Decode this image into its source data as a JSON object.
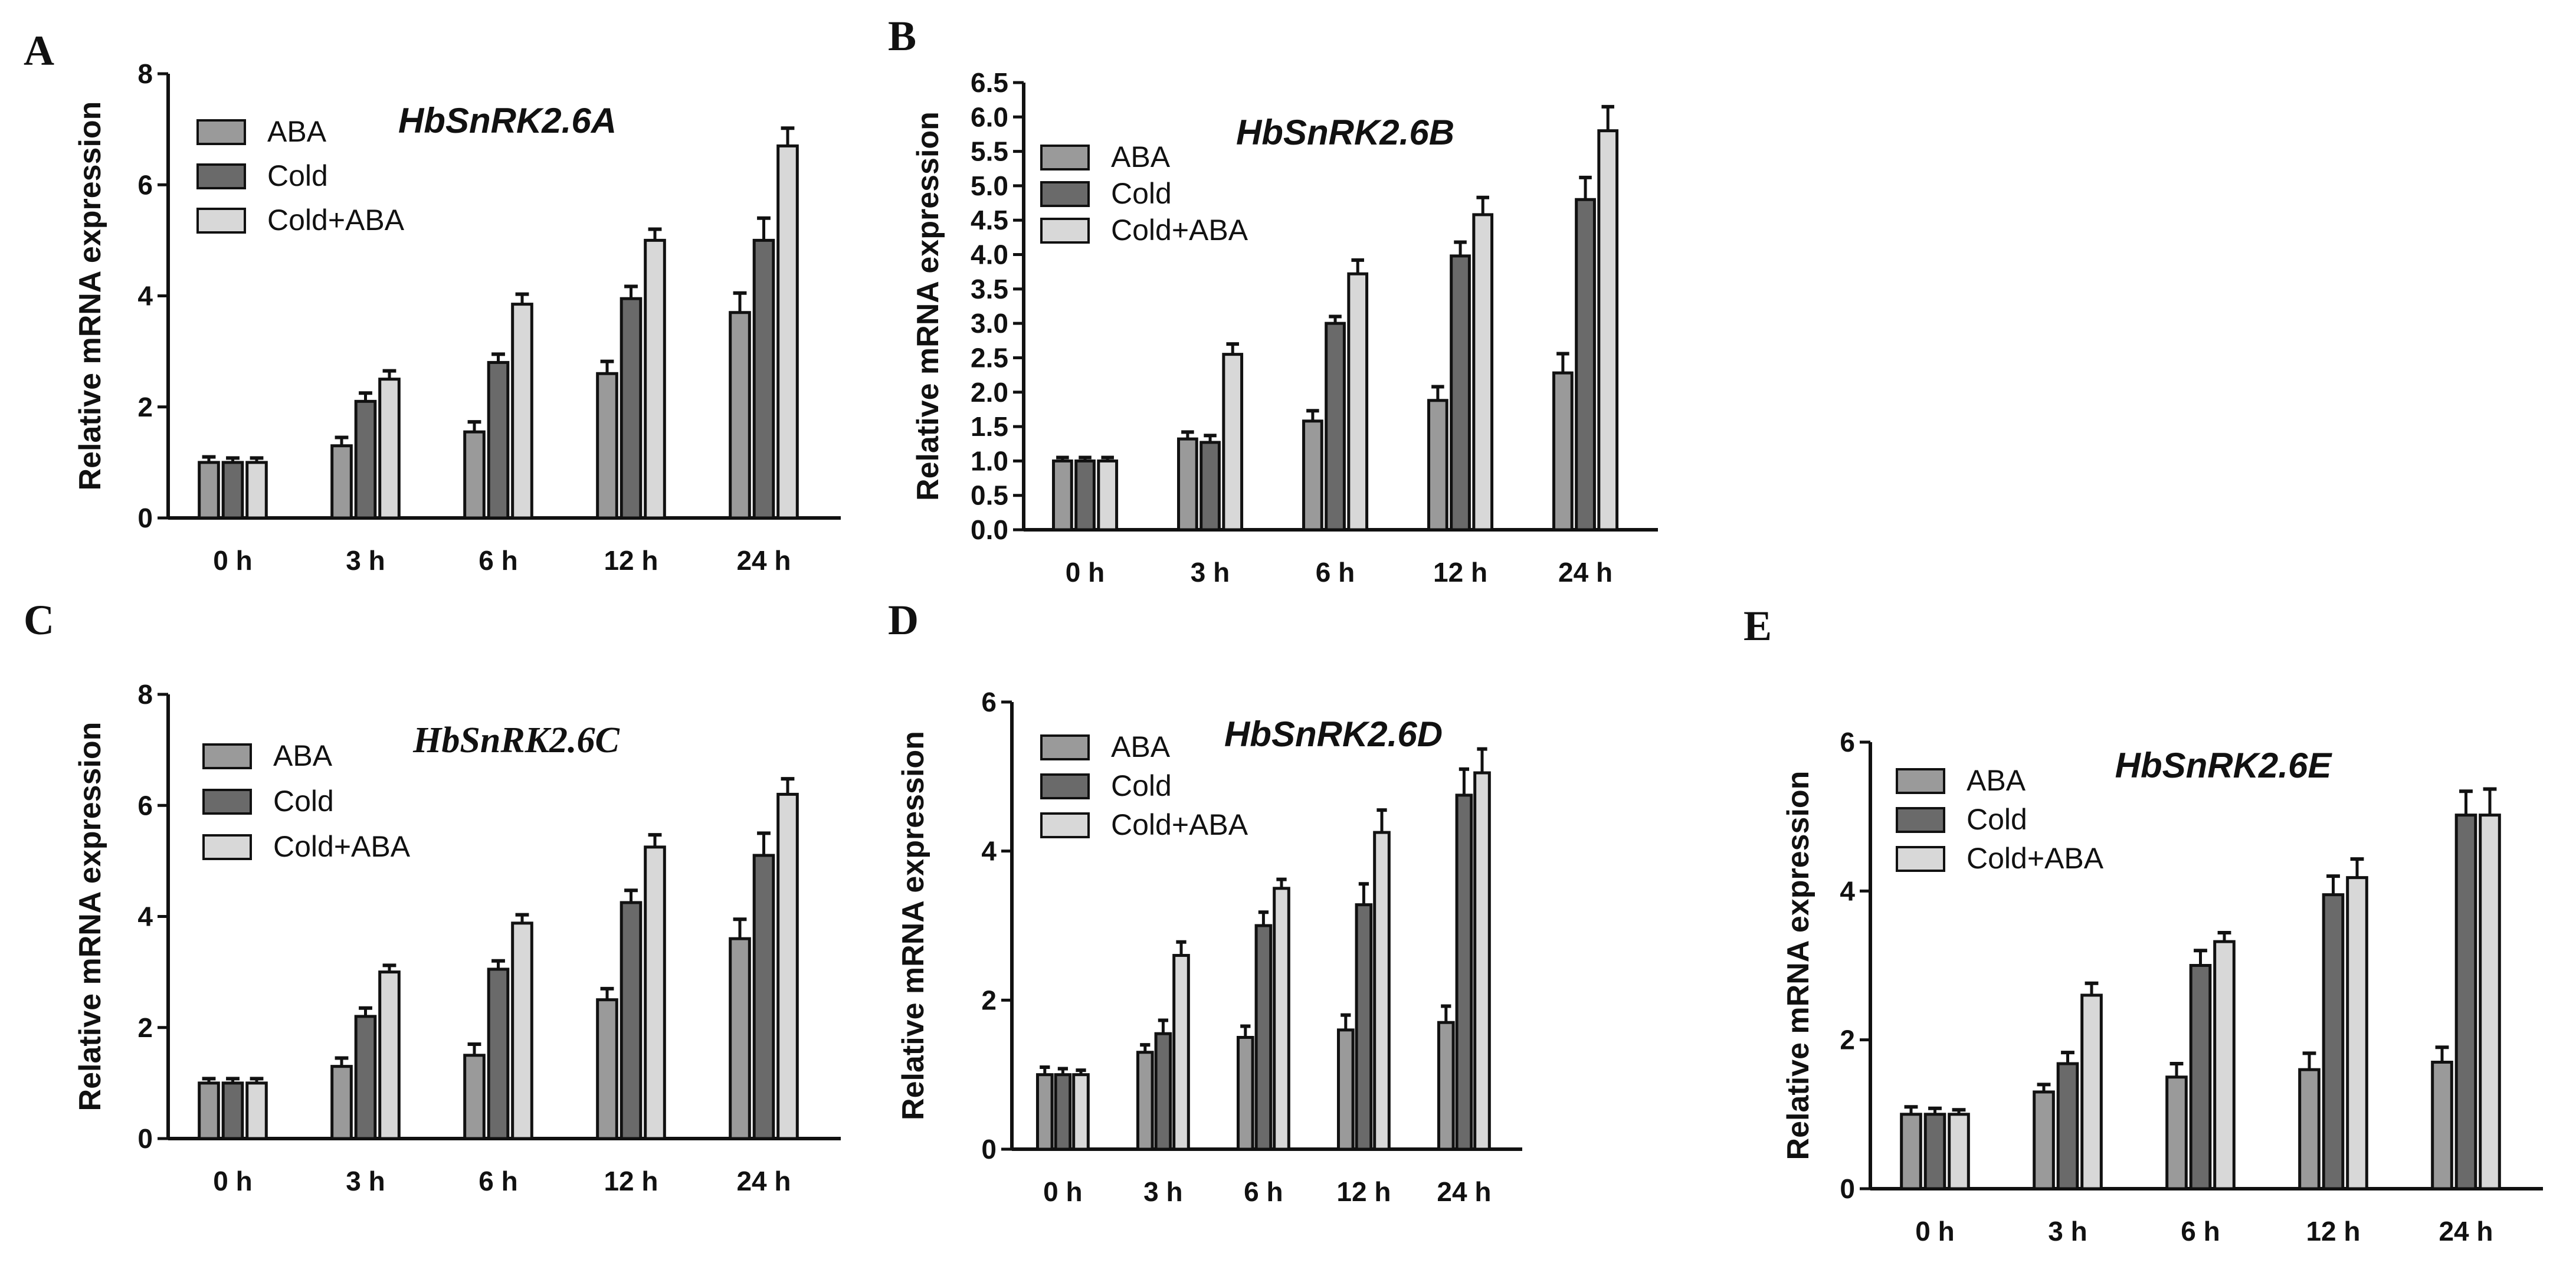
{
  "colors": {
    "ABA": "#9a9a9a",
    "Cold": "#6a6a6a",
    "Cold+ABA": "#d8d8d8"
  },
  "chart_data": [
    {
      "panel": "A",
      "type": "bar",
      "title": "HbSnRK2.6A",
      "ylabel": "Relative mRNA expression",
      "categories": [
        "0 h",
        "3 h",
        "6 h",
        "12 h",
        "24 h"
      ],
      "yticks": [
        "0",
        "2",
        "4",
        "6",
        "8"
      ],
      "ylim": [
        0,
        8
      ],
      "grid": false,
      "legend_position": "top-left",
      "series": [
        {
          "name": "ABA",
          "values": [
            1.0,
            1.3,
            1.55,
            2.6,
            3.7
          ],
          "errors": [
            0.1,
            0.15,
            0.18,
            0.22,
            0.35
          ]
        },
        {
          "name": "Cold",
          "values": [
            1.0,
            2.1,
            2.8,
            3.95,
            5.0
          ],
          "errors": [
            0.08,
            0.15,
            0.15,
            0.22,
            0.4
          ]
        },
        {
          "name": "Cold+ABA",
          "values": [
            1.0,
            2.5,
            3.85,
            5.0,
            6.7
          ],
          "errors": [
            0.08,
            0.15,
            0.18,
            0.2,
            0.32
          ]
        }
      ]
    },
    {
      "panel": "B",
      "type": "bar",
      "title": "HbSnRK2.6B",
      "ylabel": "Relative mRNA expression",
      "categories": [
        "0 h",
        "3 h",
        "6 h",
        "12 h",
        "24 h"
      ],
      "yticks": [
        "0.0",
        "0.5",
        "1.0",
        "1.5",
        "2.0",
        "2.5",
        "3.0",
        "3.5",
        "4.0",
        "4.5",
        "5.0",
        "5.5",
        "6.0",
        "6.5"
      ],
      "ylim": [
        0,
        6.5
      ],
      "grid": false,
      "legend_position": "top-left",
      "series": [
        {
          "name": "ABA",
          "values": [
            1.0,
            1.32,
            1.58,
            1.88,
            2.28
          ],
          "errors": [
            0.05,
            0.1,
            0.15,
            0.2,
            0.28
          ]
        },
        {
          "name": "Cold",
          "values": [
            1.0,
            1.27,
            3.0,
            3.98,
            4.8
          ],
          "errors": [
            0.05,
            0.1,
            0.1,
            0.2,
            0.32
          ]
        },
        {
          "name": "Cold+ABA",
          "values": [
            1.0,
            2.55,
            3.72,
            4.58,
            5.8
          ],
          "errors": [
            0.05,
            0.15,
            0.2,
            0.25,
            0.35
          ]
        }
      ]
    },
    {
      "panel": "C",
      "type": "bar",
      "title": "HbSnRK2.6C",
      "ylabel": "Relative mRNA expression",
      "categories": [
        "0 h",
        "3 h",
        "6 h",
        "12 h",
        "24 h"
      ],
      "yticks": [
        "0",
        "2",
        "4",
        "6",
        "8"
      ],
      "ylim": [
        0,
        8
      ],
      "grid": false,
      "legend_position": "top-left",
      "series": [
        {
          "name": "ABA",
          "values": [
            1.0,
            1.3,
            1.5,
            2.5,
            3.6
          ],
          "errors": [
            0.08,
            0.15,
            0.2,
            0.2,
            0.35
          ]
        },
        {
          "name": "Cold",
          "values": [
            1.0,
            2.2,
            3.05,
            4.25,
            5.1
          ],
          "errors": [
            0.08,
            0.15,
            0.15,
            0.22,
            0.4
          ]
        },
        {
          "name": "Cold+ABA",
          "values": [
            1.0,
            3.0,
            3.88,
            5.25,
            6.2
          ],
          "errors": [
            0.08,
            0.12,
            0.15,
            0.22,
            0.28
          ]
        }
      ]
    },
    {
      "panel": "D",
      "type": "bar",
      "title": "HbSnRK2.6D",
      "ylabel": "Relative mRNA expression",
      "categories": [
        "0 h",
        "3 h",
        "6 h",
        "12 h",
        "24 h"
      ],
      "yticks": [
        "0",
        "2",
        "4",
        "6"
      ],
      "ylim": [
        0,
        6
      ],
      "grid": false,
      "legend_position": "top-left",
      "series": [
        {
          "name": "ABA",
          "values": [
            1.0,
            1.3,
            1.5,
            1.6,
            1.7
          ],
          "errors": [
            0.1,
            0.1,
            0.15,
            0.2,
            0.22
          ]
        },
        {
          "name": "Cold",
          "values": [
            1.0,
            1.55,
            3.0,
            3.28,
            4.75
          ],
          "errors": [
            0.08,
            0.18,
            0.18,
            0.28,
            0.35
          ]
        },
        {
          "name": "Cold+ABA",
          "values": [
            1.0,
            2.6,
            3.5,
            4.25,
            5.05
          ],
          "errors": [
            0.06,
            0.18,
            0.12,
            0.3,
            0.32
          ]
        }
      ]
    },
    {
      "panel": "E",
      "type": "bar",
      "title": "HbSnRK2.6E",
      "ylabel": "Relative mRNA expression",
      "categories": [
        "0 h",
        "3 h",
        "6 h",
        "12 h",
        "24 h"
      ],
      "yticks": [
        "0",
        "2",
        "4",
        "6"
      ],
      "ylim": [
        0,
        6
      ],
      "grid": false,
      "legend_position": "top-left",
      "series": [
        {
          "name": "ABA",
          "values": [
            1.0,
            1.3,
            1.5,
            1.6,
            1.7
          ],
          "errors": [
            0.1,
            0.1,
            0.18,
            0.22,
            0.2
          ]
        },
        {
          "name": "Cold",
          "values": [
            1.0,
            1.68,
            3.0,
            3.95,
            5.02
          ],
          "errors": [
            0.08,
            0.15,
            0.2,
            0.25,
            0.32
          ]
        },
        {
          "name": "Cold+ABA",
          "values": [
            1.0,
            2.6,
            3.32,
            4.18,
            5.02
          ],
          "errors": [
            0.06,
            0.16,
            0.12,
            0.25,
            0.35
          ]
        }
      ]
    }
  ]
}
